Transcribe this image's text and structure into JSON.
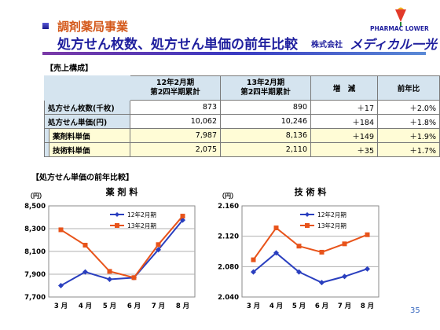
{
  "header": {
    "section": "調剤薬局事業",
    "title_main": "処方せん枚数、処方せん単価の前年比較",
    "title_company_prefix": "株式会社",
    "title_company_name": "メディカル一光",
    "logo_text": "PHARMAC  LOWER"
  },
  "summary": {
    "heading": "【売上構成】",
    "col1_line1": "12年2月期",
    "col1_line2": "第2四半期累計",
    "col2_line1": "13年2月期",
    "col2_line2": "第2四半期累計",
    "col3": "増　減",
    "col4": "前年比",
    "rows": [
      {
        "label": "処方せん枚数(千枚)",
        "prev": "873",
        "curr": "890",
        "diff": "＋17",
        "ratio": "＋2.0%"
      },
      {
        "label": "処方せん単価(円)",
        "prev": "10,062",
        "curr": "10,246",
        "diff": "＋184",
        "ratio": "＋1.8%"
      },
      {
        "label": "薬剤料単価",
        "prev": "7,987",
        "curr": "8,136",
        "diff": "＋149",
        "ratio": "＋1.9%"
      },
      {
        "label": "技術料単価",
        "prev": "2,075",
        "curr": "2,110",
        "diff": "＋35",
        "ratio": "＋1.7%"
      }
    ]
  },
  "comparison_heading": "【処方せん単価の前年比較】",
  "page_number": "35",
  "colors": {
    "series_prev": "#2a3fbf",
    "series_curr": "#e8531a",
    "accent_title": "#d4581a",
    "title_blue": "#1f1f9e"
  },
  "chart_data": [
    {
      "type": "line",
      "title": "薬 剤 料",
      "unit_label": "（円）",
      "categories": [
        "3 月",
        "4 月",
        "5 月",
        "6 月",
        "7 月",
        "8 月"
      ],
      "ylim": [
        7700,
        8500
      ],
      "yticks": [
        "8,500",
        "8,300",
        "8,100",
        "7,900",
        "7,700"
      ],
      "legend_position": "top-left",
      "series": [
        {
          "name": "12年2月期",
          "values": [
            7800,
            7920,
            7855,
            7870,
            8115,
            8375
          ]
        },
        {
          "name": "13年2月期",
          "values": [
            8290,
            8155,
            7925,
            7870,
            8160,
            8410
          ]
        }
      ]
    },
    {
      "type": "line",
      "title": "技 術 料",
      "unit_label": "（円）",
      "categories": [
        "3 月",
        "4 月",
        "5 月",
        "6 月",
        "7 月",
        "8 月"
      ],
      "ylim": [
        2040,
        2160
      ],
      "yticks": [
        "2.160",
        "2.120",
        "2.080",
        "2.040"
      ],
      "legend_position": "top-left",
      "series": [
        {
          "name": "12年2月期",
          "values": [
            2073,
            2098,
            2073,
            2059,
            2067,
            2077
          ]
        },
        {
          "name": "13年2月期",
          "values": [
            2089,
            2131,
            2107,
            2099,
            2110,
            2122
          ]
        }
      ]
    }
  ]
}
